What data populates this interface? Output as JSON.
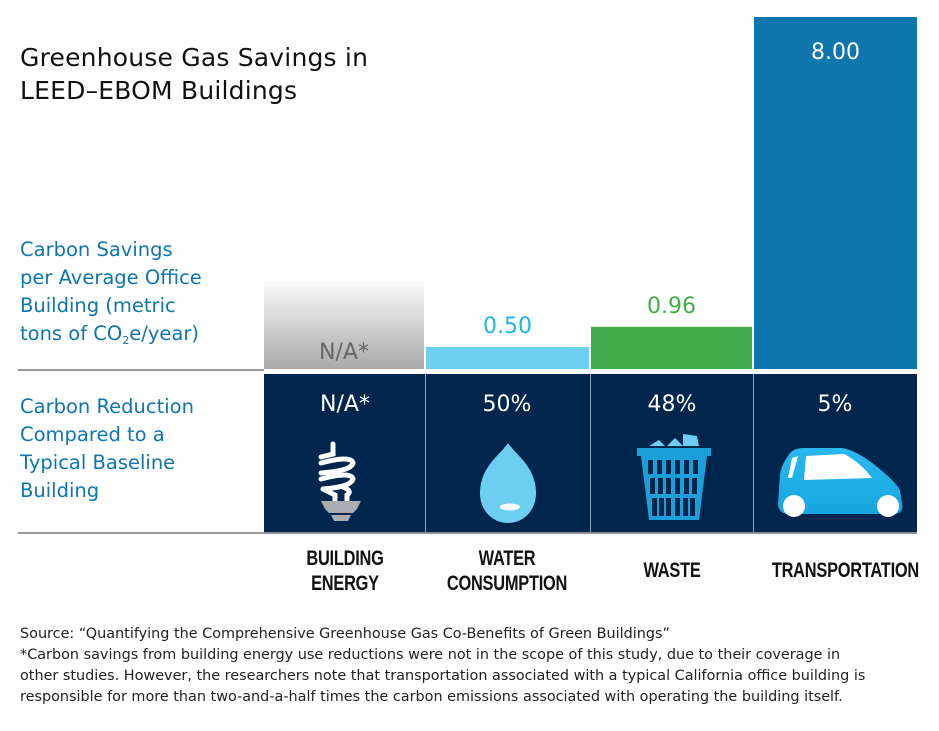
{
  "title_lines": [
    "Greenhouse Gas Savings in",
    "LEED–EBOM Buildings"
  ],
  "row_labels": {
    "savings": [
      "Carbon Savings",
      "per Average Office",
      "Building (metric",
      "tons of CO",
      "2",
      "e/year)"
    ],
    "reduction": [
      "Carbon Reduction",
      "Compared to a",
      "Typical Baseline",
      "Building"
    ]
  },
  "colors": {
    "building_energy": "#b5b5b5",
    "water": "#6ccff2",
    "waste": "#43ae4d",
    "transportation": "#0f76ad",
    "panel": "#00264d",
    "label_blue": "#0f76ad"
  },
  "categories": [
    {
      "name_lines": [
        "BUILDING",
        "ENERGY"
      ],
      "reduction": "N/A*",
      "icon": "cfl-bulb-icon"
    },
    {
      "name_lines": [
        "WATER",
        "CONSUMPTION"
      ],
      "reduction": "50%",
      "icon": "water-drop-icon"
    },
    {
      "name_lines": [
        "WASTE"
      ],
      "reduction": "48%",
      "icon": "trash-basket-icon"
    },
    {
      "name_lines": [
        "TRANSPORTATION"
      ],
      "reduction": "5%",
      "icon": "car-icon"
    }
  ],
  "chart_data": {
    "type": "bar",
    "title": "Greenhouse Gas Savings in LEED–EBOM Buildings",
    "xlabel": "",
    "ylabel": "Carbon Savings per Average Office Building (metric tons of CO2e/year)",
    "categories": [
      "BUILDING ENERGY",
      "WATER CONSUMPTION",
      "WASTE",
      "TRANSPORTATION"
    ],
    "values": [
      null,
      0.5,
      0.96,
      8.0
    ],
    "data_labels": [
      "N/A*",
      "0.50",
      "0.96",
      "8.00"
    ],
    "secondary_row": {
      "label": "Carbon Reduction Compared to a Typical Baseline Building",
      "values": [
        "N/A*",
        "50%",
        "48%",
        "5%"
      ]
    },
    "ylim": [
      0,
      8.0
    ],
    "grid": false,
    "legend": "none"
  },
  "footer": {
    "source": "Source: “Quantifying the Comprehensive Greenhouse Gas Co-Benefits of Green Buildings”",
    "note_lines": [
      "*Carbon savings from building energy use reductions were not in the scope of this study, due to their coverage in",
      "other studies. However, the researchers note that transportation associated with a typical California office building is",
      "responsible for more than two-and-a-half times the carbon emissions associated with operating the building itself."
    ]
  }
}
